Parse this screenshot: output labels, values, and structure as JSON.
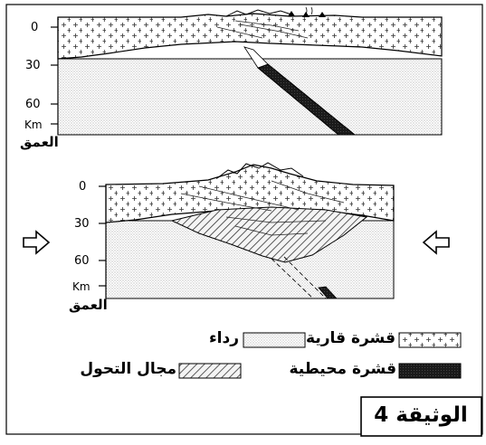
{
  "top_section": {
    "depth_ticks": [
      "0",
      "30",
      "60"
    ],
    "unit": "Km",
    "depth_word": "العمق"
  },
  "bottom_section": {
    "depth_ticks": [
      "0",
      "30",
      "60"
    ],
    "unit": "Km",
    "depth_word": "العمق"
  },
  "legend": {
    "continental_crust": "قشرة قارية",
    "mantle": "رداء",
    "oceanic_crust": "قشرة محيطية",
    "metamorphism_zone": "مجال التحول"
  },
  "document_label": "الوثيقة 4",
  "colors": {
    "outline": "#000000",
    "crust_fill": "#ffffff",
    "mantle_dots": "#555555",
    "oceanic_fill": "#1a1a1a",
    "hatch": "#333333"
  }
}
